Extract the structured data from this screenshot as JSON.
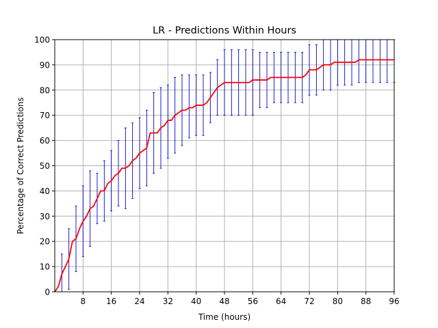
{
  "chart_data": {
    "type": "line",
    "title": "LR - Predictions Within Hours",
    "xlabel": "Time (hours)",
    "ylabel": "Percentage of Correct Predictions",
    "xlim": [
      0,
      96
    ],
    "ylim": [
      0,
      100
    ],
    "xticks": [
      8,
      16,
      24,
      32,
      40,
      48,
      56,
      64,
      72,
      80,
      88,
      96
    ],
    "yticks": [
      0,
      10,
      20,
      30,
      40,
      50,
      60,
      70,
      80,
      90,
      100
    ],
    "grid": true,
    "colors": {
      "line": "#ff0000",
      "errorbar": "#0000cc",
      "grid": "#b0b0b0"
    },
    "series": [
      {
        "x": [
          0,
          1,
          2,
          3,
          4,
          5,
          6,
          7,
          8,
          9,
          10,
          11,
          12,
          13,
          14,
          15,
          16,
          17,
          18,
          19,
          20,
          21,
          22,
          23,
          24,
          25,
          26,
          27,
          28,
          29,
          30,
          31,
          32,
          33,
          34,
          35,
          36,
          37,
          38,
          39,
          40,
          41,
          42,
          43,
          44,
          45,
          46,
          47,
          48,
          49,
          50,
          51,
          52,
          53,
          54,
          55,
          56,
          57,
          58,
          59,
          60,
          61,
          62,
          63,
          64,
          65,
          66,
          67,
          68,
          69,
          70,
          71,
          72,
          73,
          74,
          75,
          76,
          77,
          78,
          79,
          80,
          81,
          82,
          83,
          84,
          85,
          86,
          87,
          88,
          89,
          90,
          91,
          92,
          93,
          94,
          95,
          96
        ],
        "y": [
          0,
          2,
          7,
          10,
          13,
          20,
          21,
          25,
          28,
          30,
          33,
          34,
          37,
          40,
          40,
          43,
          44,
          46,
          47,
          49,
          49,
          50,
          52,
          53,
          55,
          56,
          57,
          63,
          63,
          63,
          65,
          66,
          68,
          68,
          70,
          71,
          72,
          72,
          73,
          73,
          74,
          74,
          74,
          75,
          77,
          79,
          81,
          82,
          83,
          83,
          83,
          83,
          83,
          83,
          83,
          83,
          84,
          84,
          84,
          84,
          84,
          85,
          85,
          85,
          85,
          85,
          85,
          85,
          85,
          85,
          85,
          86,
          88,
          88,
          88,
          89,
          90,
          90,
          90,
          91,
          91,
          91,
          91,
          91,
          91,
          91,
          92,
          92,
          92,
          92,
          92,
          92,
          92,
          92,
          92,
          92,
          92
        ]
      }
    ],
    "error_bars": {
      "x": [
        2,
        4,
        6,
        8,
        10,
        12,
        14,
        16,
        18,
        20,
        22,
        24,
        26,
        28,
        30,
        32,
        34,
        36,
        38,
        40,
        42,
        44,
        46,
        48,
        50,
        52,
        54,
        56,
        58,
        60,
        62,
        64,
        66,
        68,
        70,
        72,
        74,
        76,
        78,
        80,
        82,
        84,
        86,
        88,
        90,
        92,
        94,
        96
      ],
      "low": [
        0,
        1,
        8,
        14,
        18,
        27,
        28,
        32,
        34,
        33,
        37,
        41,
        42,
        47,
        49,
        53,
        55,
        58,
        61,
        62,
        62,
        67,
        70,
        70,
        70,
        70,
        70,
        70,
        73,
        73,
        75,
        75,
        75,
        75,
        75,
        78,
        78,
        80,
        80,
        82,
        82,
        82,
        83,
        83,
        83,
        83,
        83,
        83
      ],
      "high": [
        15,
        25,
        34,
        42,
        48,
        47,
        52,
        56,
        60,
        65,
        67,
        69,
        72,
        79,
        81,
        82,
        85,
        86,
        86,
        86,
        86,
        87,
        92,
        96,
        96,
        96,
        96,
        96,
        95,
        95,
        95,
        95,
        95,
        95,
        95,
        98,
        98,
        100,
        100,
        100,
        100,
        100,
        100,
        100,
        100,
        100,
        100,
        100
      ]
    }
  }
}
